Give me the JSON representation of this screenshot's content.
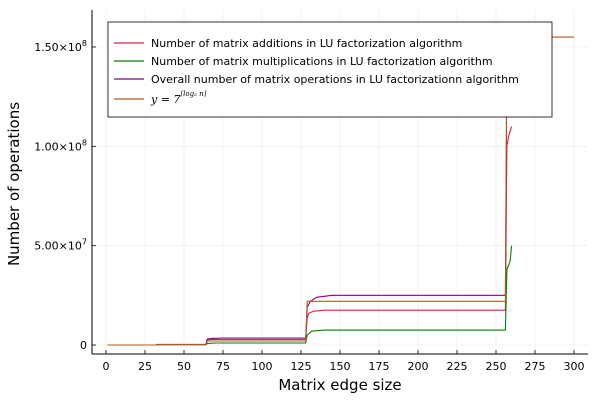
{
  "chart_data": {
    "type": "line",
    "xlabel": "Matrix edge size",
    "ylabel": "Number of operations",
    "xlim": [
      0,
      300
    ],
    "ylim": [
      0,
      167000000
    ],
    "grid": true,
    "legend_position": "top-right",
    "xticks": [
      0,
      25,
      50,
      75,
      100,
      125,
      150,
      175,
      200,
      225,
      250,
      275,
      300
    ],
    "xtick_labels": [
      "0",
      "25",
      "50",
      "75",
      "100",
      "125",
      "150",
      "175",
      "200",
      "225",
      "250",
      "275",
      "300"
    ],
    "yticks": [
      0,
      50000000,
      100000000,
      150000000
    ],
    "ytick_labels": [
      {
        "mantissa": "0",
        "exp": ""
      },
      {
        "mantissa": "5.00×10",
        "exp": "7"
      },
      {
        "mantissa": "1.00×10",
        "exp": "8"
      },
      {
        "mantissa": "1.50×10",
        "exp": "8"
      }
    ],
    "series": [
      {
        "name": "Number of matrix additions in LU factorization algorithm",
        "color": "#e6194b",
        "points": [
          [
            1,
            0
          ],
          [
            32,
            0
          ],
          [
            33,
            200000
          ],
          [
            64,
            200000
          ],
          [
            65,
            2500000
          ],
          [
            66,
            2700000
          ],
          [
            70,
            2800000
          ],
          [
            128,
            2800000
          ],
          [
            129,
            14000000
          ],
          [
            130,
            16000000
          ],
          [
            133,
            17000000
          ],
          [
            140,
            17500000
          ],
          [
            256,
            17500000
          ],
          [
            257,
            100000000
          ],
          [
            258,
            105000000
          ],
          [
            260,
            110000000
          ]
        ]
      },
      {
        "name": "Number of matrix multiplications in LU factorization algorithm",
        "color": "#008000",
        "points": [
          [
            1,
            0
          ],
          [
            32,
            0
          ],
          [
            33,
            150000
          ],
          [
            64,
            150000
          ],
          [
            65,
            800000
          ],
          [
            70,
            1000000
          ],
          [
            128,
            1000000
          ],
          [
            129,
            5000000
          ],
          [
            132,
            7000000
          ],
          [
            140,
            7500000
          ],
          [
            256,
            7500000
          ],
          [
            257,
            38000000
          ],
          [
            259,
            42000000
          ],
          [
            260,
            50000000
          ]
        ]
      },
      {
        "name": "Overall number of matrix operations in LU factorizationn algorithm",
        "color": "#800080",
        "points": [
          [
            1,
            0
          ],
          [
            32,
            0
          ],
          [
            33,
            300000
          ],
          [
            64,
            300000
          ],
          [
            65,
            3000000
          ],
          [
            68,
            3300000
          ],
          [
            75,
            3500000
          ],
          [
            128,
            3500000
          ],
          [
            129,
            19000000
          ],
          [
            131,
            22000000
          ],
          [
            135,
            24000000
          ],
          [
            145,
            25000000
          ],
          [
            256,
            25000000
          ],
          [
            257,
            140000000
          ],
          [
            259,
            145000000
          ],
          [
            261,
            150000000
          ]
        ]
      },
      {
        "name_prefix": "y = 7",
        "name_sup": "⌈log₂ n⌉",
        "color": "#b35a1f",
        "points": [
          [
            1,
            0
          ],
          [
            32,
            0
          ],
          [
            33,
            200000
          ],
          [
            64,
            200000
          ],
          [
            65,
            2000000
          ],
          [
            128,
            2000000
          ],
          [
            129,
            22000000
          ],
          [
            256,
            22000000
          ],
          [
            257,
            155000000
          ],
          [
            300,
            155000000
          ]
        ]
      }
    ]
  }
}
